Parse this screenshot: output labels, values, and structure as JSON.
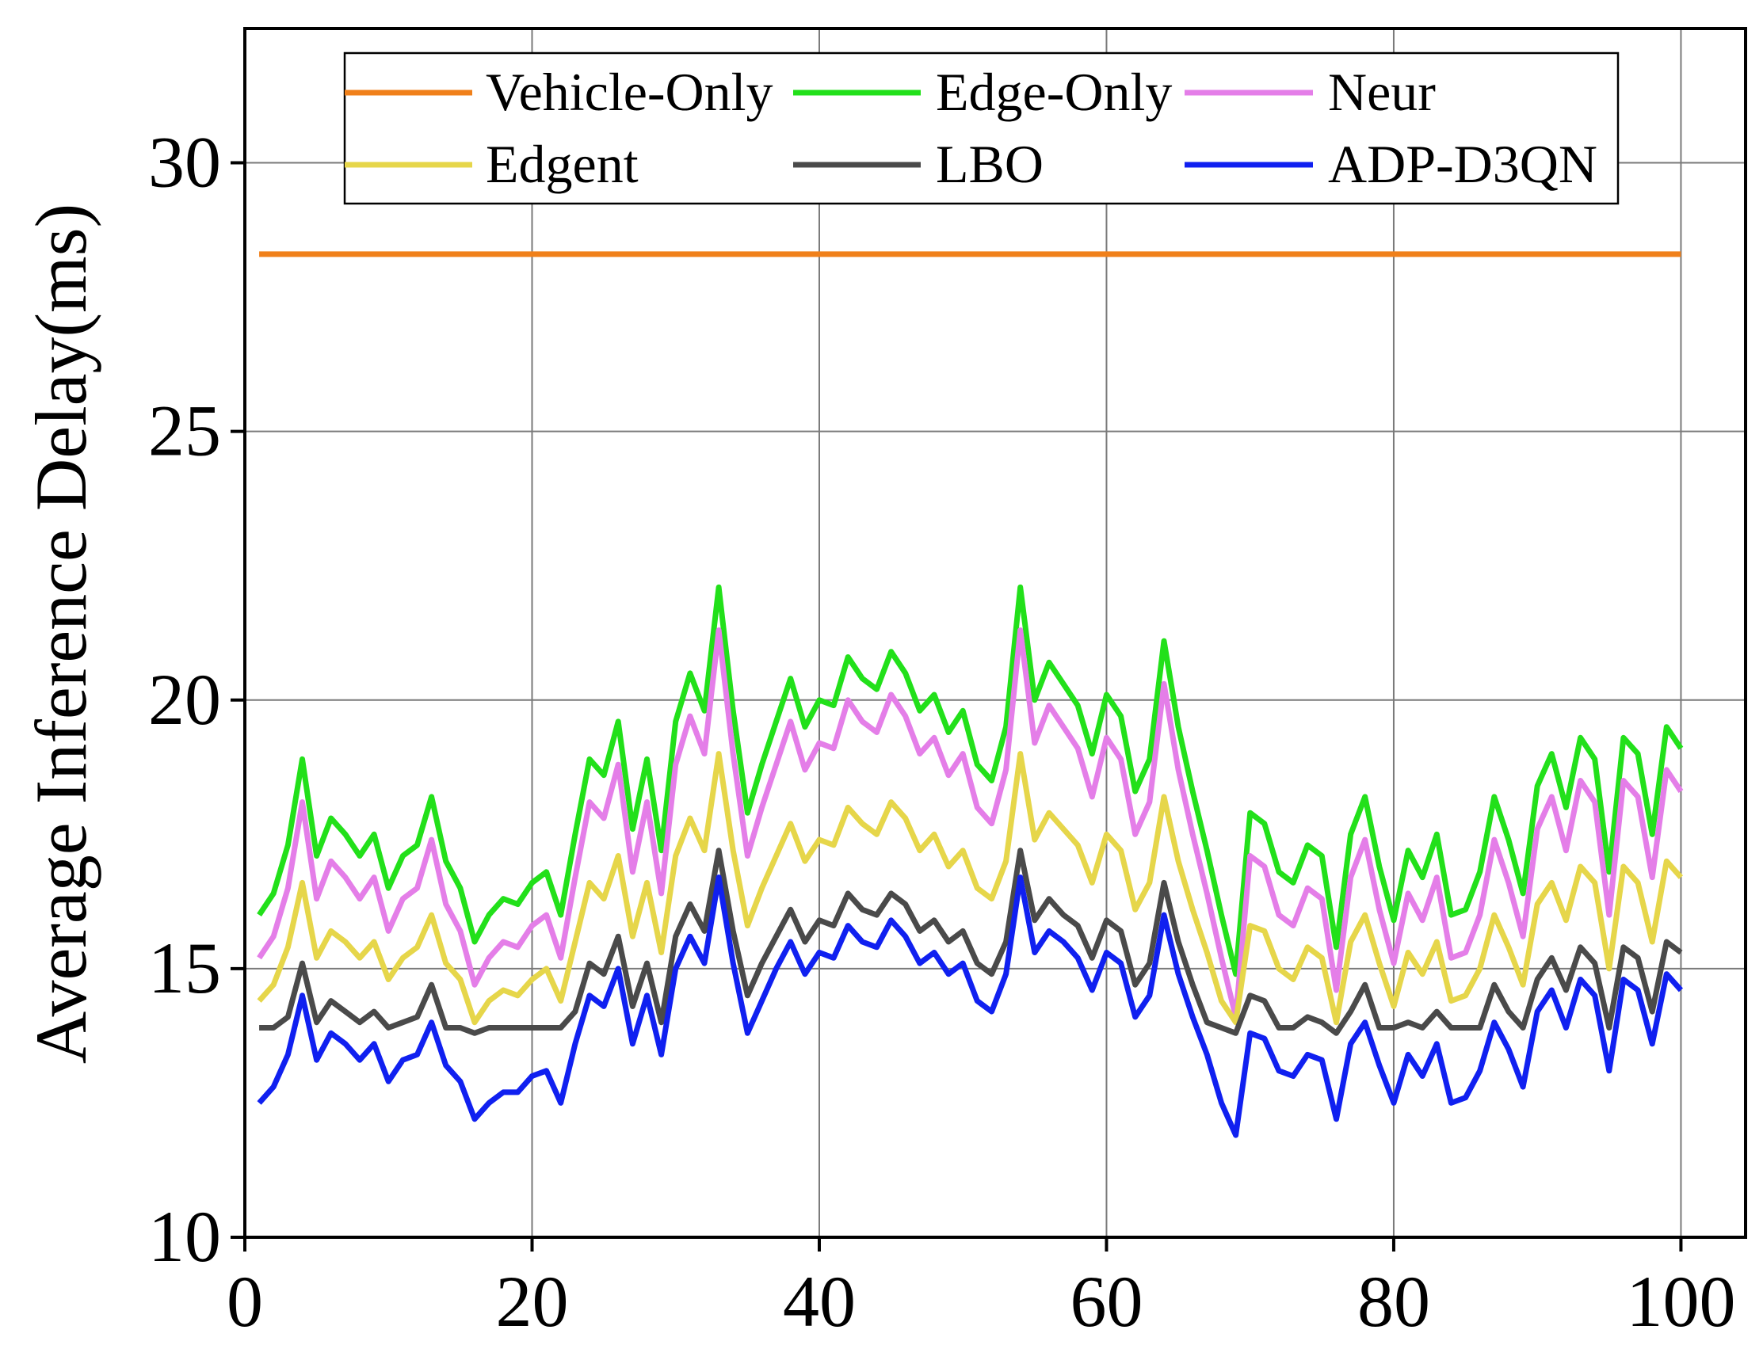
{
  "chart_data": {
    "type": "line",
    "title": "",
    "xlabel": "",
    "ylabel": "Average Inference Delay(ms)",
    "xlim": [
      0,
      104.5
    ],
    "ylim": [
      10,
      32.5
    ],
    "xticks": [
      0,
      20,
      40,
      60,
      80,
      100
    ],
    "yticks": [
      10,
      15,
      20,
      25,
      30
    ],
    "grid": true,
    "legend_placement": "top",
    "x_start": 1,
    "series": [
      {
        "name": "Vehicle-Only",
        "color": "#f0801a",
        "values": [
          28.3,
          28.3,
          28.3,
          28.3,
          28.3,
          28.3,
          28.3,
          28.3,
          28.3,
          28.3,
          28.3,
          28.3,
          28.3,
          28.3,
          28.3,
          28.3,
          28.3,
          28.3,
          28.3,
          28.3,
          28.3,
          28.3,
          28.3,
          28.3,
          28.3,
          28.3,
          28.3,
          28.3,
          28.3,
          28.3,
          28.3,
          28.3,
          28.3,
          28.3,
          28.3,
          28.3,
          28.3,
          28.3,
          28.3,
          28.3,
          28.3,
          28.3,
          28.3,
          28.3,
          28.3,
          28.3,
          28.3,
          28.3,
          28.3,
          28.3,
          28.3,
          28.3,
          28.3,
          28.3,
          28.3,
          28.3,
          28.3,
          28.3,
          28.3,
          28.3,
          28.3,
          28.3,
          28.3,
          28.3,
          28.3,
          28.3,
          28.3,
          28.3,
          28.3,
          28.3,
          28.3,
          28.3,
          28.3,
          28.3,
          28.3,
          28.3,
          28.3,
          28.3,
          28.3,
          28.3,
          28.3,
          28.3,
          28.3,
          28.3,
          28.3,
          28.3,
          28.3,
          28.3,
          28.3,
          28.3,
          28.3,
          28.3,
          28.3,
          28.3,
          28.3,
          28.3,
          28.3,
          28.3,
          28.3,
          28.3
        ]
      },
      {
        "name": "Edge-Only",
        "color": "#22e01a",
        "values": [
          16.0,
          16.4,
          17.3,
          18.9,
          17.1,
          17.8,
          17.5,
          17.1,
          17.5,
          16.5,
          17.1,
          17.3,
          18.2,
          17.0,
          16.5,
          15.5,
          16.0,
          16.3,
          16.2,
          16.6,
          16.8,
          16.0,
          17.5,
          18.9,
          18.6,
          19.6,
          17.6,
          18.9,
          17.2,
          19.6,
          20.5,
          19.8,
          22.1,
          19.8,
          17.9,
          18.8,
          19.6,
          20.4,
          19.5,
          20.0,
          19.9,
          20.8,
          20.4,
          20.2,
          20.9,
          20.5,
          19.8,
          20.1,
          19.4,
          19.8,
          18.8,
          18.5,
          19.5,
          22.1,
          20.0,
          20.7,
          20.3,
          19.9,
          19.0,
          20.1,
          19.7,
          18.3,
          18.9,
          21.1,
          19.5,
          18.3,
          17.2,
          16.0,
          14.9,
          17.9,
          17.7,
          16.8,
          16.6,
          17.3,
          17.1,
          15.4,
          17.5,
          18.2,
          16.9,
          15.9,
          17.2,
          16.7,
          17.5,
          16.0,
          16.1,
          16.8,
          18.2,
          17.4,
          16.4,
          18.4,
          19.0,
          18.0,
          19.3,
          18.9,
          16.8,
          19.3,
          19.0,
          17.5,
          19.5,
          19.1
        ]
      },
      {
        "name": "Neur",
        "color": "#e47ee8",
        "values": [
          15.2,
          15.6,
          16.5,
          18.1,
          16.3,
          17.0,
          16.7,
          16.3,
          16.7,
          15.7,
          16.3,
          16.5,
          17.4,
          16.2,
          15.7,
          14.7,
          15.2,
          15.5,
          15.4,
          15.8,
          16.0,
          15.2,
          16.7,
          18.1,
          17.8,
          18.8,
          16.8,
          18.1,
          16.4,
          18.8,
          19.7,
          19.0,
          21.3,
          19.0,
          17.1,
          18.0,
          18.8,
          19.6,
          18.7,
          19.2,
          19.1,
          20.0,
          19.6,
          19.4,
          20.1,
          19.7,
          19.0,
          19.3,
          18.6,
          19.0,
          18.0,
          17.7,
          18.7,
          21.3,
          19.2,
          19.9,
          19.5,
          19.1,
          18.2,
          19.3,
          18.9,
          17.5,
          18.1,
          20.3,
          18.7,
          17.5,
          16.4,
          15.2,
          14.1,
          17.1,
          16.9,
          16.0,
          15.8,
          16.5,
          16.3,
          14.6,
          16.7,
          17.4,
          16.1,
          15.1,
          16.4,
          15.9,
          16.7,
          15.2,
          15.3,
          16.0,
          17.4,
          16.6,
          15.6,
          17.6,
          18.2,
          17.2,
          18.5,
          18.1,
          16.0,
          18.5,
          18.2,
          16.7,
          18.7,
          18.3
        ]
      },
      {
        "name": "Edgent",
        "color": "#e6d64a",
        "values": [
          14.4,
          14.7,
          15.4,
          16.6,
          15.2,
          15.7,
          15.5,
          15.2,
          15.5,
          14.8,
          15.2,
          15.4,
          16.0,
          15.1,
          14.8,
          14.0,
          14.4,
          14.6,
          14.5,
          14.8,
          15.0,
          14.4,
          15.5,
          16.6,
          16.3,
          17.1,
          15.6,
          16.6,
          15.3,
          17.1,
          17.8,
          17.2,
          19.0,
          17.2,
          15.8,
          16.5,
          17.1,
          17.7,
          17.0,
          17.4,
          17.3,
          18.0,
          17.7,
          17.5,
          18.1,
          17.8,
          17.2,
          17.5,
          16.9,
          17.2,
          16.5,
          16.3,
          17.0,
          19.0,
          17.4,
          17.9,
          17.6,
          17.3,
          16.6,
          17.5,
          17.2,
          16.1,
          16.6,
          18.2,
          17.0,
          16.1,
          15.3,
          14.4,
          14.0,
          15.8,
          15.7,
          15.0,
          14.8,
          15.4,
          15.2,
          14.0,
          15.5,
          16.0,
          15.1,
          14.3,
          15.3,
          14.9,
          15.5,
          14.4,
          14.5,
          15.0,
          16.0,
          15.4,
          14.7,
          16.2,
          16.6,
          15.9,
          16.9,
          16.6,
          15.0,
          16.9,
          16.6,
          15.5,
          17.0,
          16.7
        ]
      },
      {
        "name": "LBO",
        "color": "#4a4a4a",
        "values": [
          13.9,
          13.9,
          14.1,
          15.1,
          14.0,
          14.4,
          14.2,
          14.0,
          14.2,
          13.9,
          14.0,
          14.1,
          14.7,
          13.9,
          13.9,
          13.8,
          13.9,
          13.9,
          13.9,
          13.9,
          13.9,
          13.9,
          14.2,
          15.1,
          14.9,
          15.6,
          14.3,
          15.1,
          14.0,
          15.6,
          16.2,
          15.7,
          17.2,
          15.7,
          14.5,
          15.1,
          15.6,
          16.1,
          15.5,
          15.9,
          15.8,
          16.4,
          16.1,
          16.0,
          16.4,
          16.2,
          15.7,
          15.9,
          15.5,
          15.7,
          15.1,
          14.9,
          15.5,
          17.2,
          15.9,
          16.3,
          16.0,
          15.8,
          15.2,
          15.9,
          15.7,
          14.7,
          15.1,
          16.6,
          15.5,
          14.7,
          14.0,
          13.9,
          13.8,
          14.5,
          14.4,
          13.9,
          13.9,
          14.1,
          14.0,
          13.8,
          14.2,
          14.7,
          13.9,
          13.9,
          14.0,
          13.9,
          14.2,
          13.9,
          13.9,
          13.9,
          14.7,
          14.2,
          13.9,
          14.8,
          15.2,
          14.6,
          15.4,
          15.1,
          13.9,
          15.4,
          15.2,
          14.2,
          15.5,
          15.3
        ]
      },
      {
        "name": "ADP-D3QN",
        "color": "#1020f0",
        "values": [
          12.5,
          12.8,
          13.4,
          14.5,
          13.3,
          13.8,
          13.6,
          13.3,
          13.6,
          12.9,
          13.3,
          13.4,
          14.0,
          13.2,
          12.9,
          12.2,
          12.5,
          12.7,
          12.7,
          13.0,
          13.1,
          12.5,
          13.6,
          14.5,
          14.3,
          15.0,
          13.6,
          14.5,
          13.4,
          15.0,
          15.6,
          15.1,
          16.7,
          15.1,
          13.8,
          14.4,
          15.0,
          15.5,
          14.9,
          15.3,
          15.2,
          15.8,
          15.5,
          15.4,
          15.9,
          15.6,
          15.1,
          15.3,
          14.9,
          15.1,
          14.4,
          14.2,
          14.9,
          16.7,
          15.3,
          15.7,
          15.5,
          15.2,
          14.6,
          15.3,
          15.1,
          14.1,
          14.5,
          16.0,
          14.9,
          14.1,
          13.4,
          12.5,
          11.9,
          13.8,
          13.7,
          13.1,
          13.0,
          13.4,
          13.3,
          12.2,
          13.6,
          14.0,
          13.2,
          12.5,
          13.4,
          13.0,
          13.6,
          12.5,
          12.6,
          13.1,
          14.0,
          13.5,
          12.8,
          14.2,
          14.6,
          13.9,
          14.8,
          14.5,
          13.1,
          14.8,
          14.6,
          13.6,
          14.9,
          14.6
        ]
      }
    ]
  }
}
